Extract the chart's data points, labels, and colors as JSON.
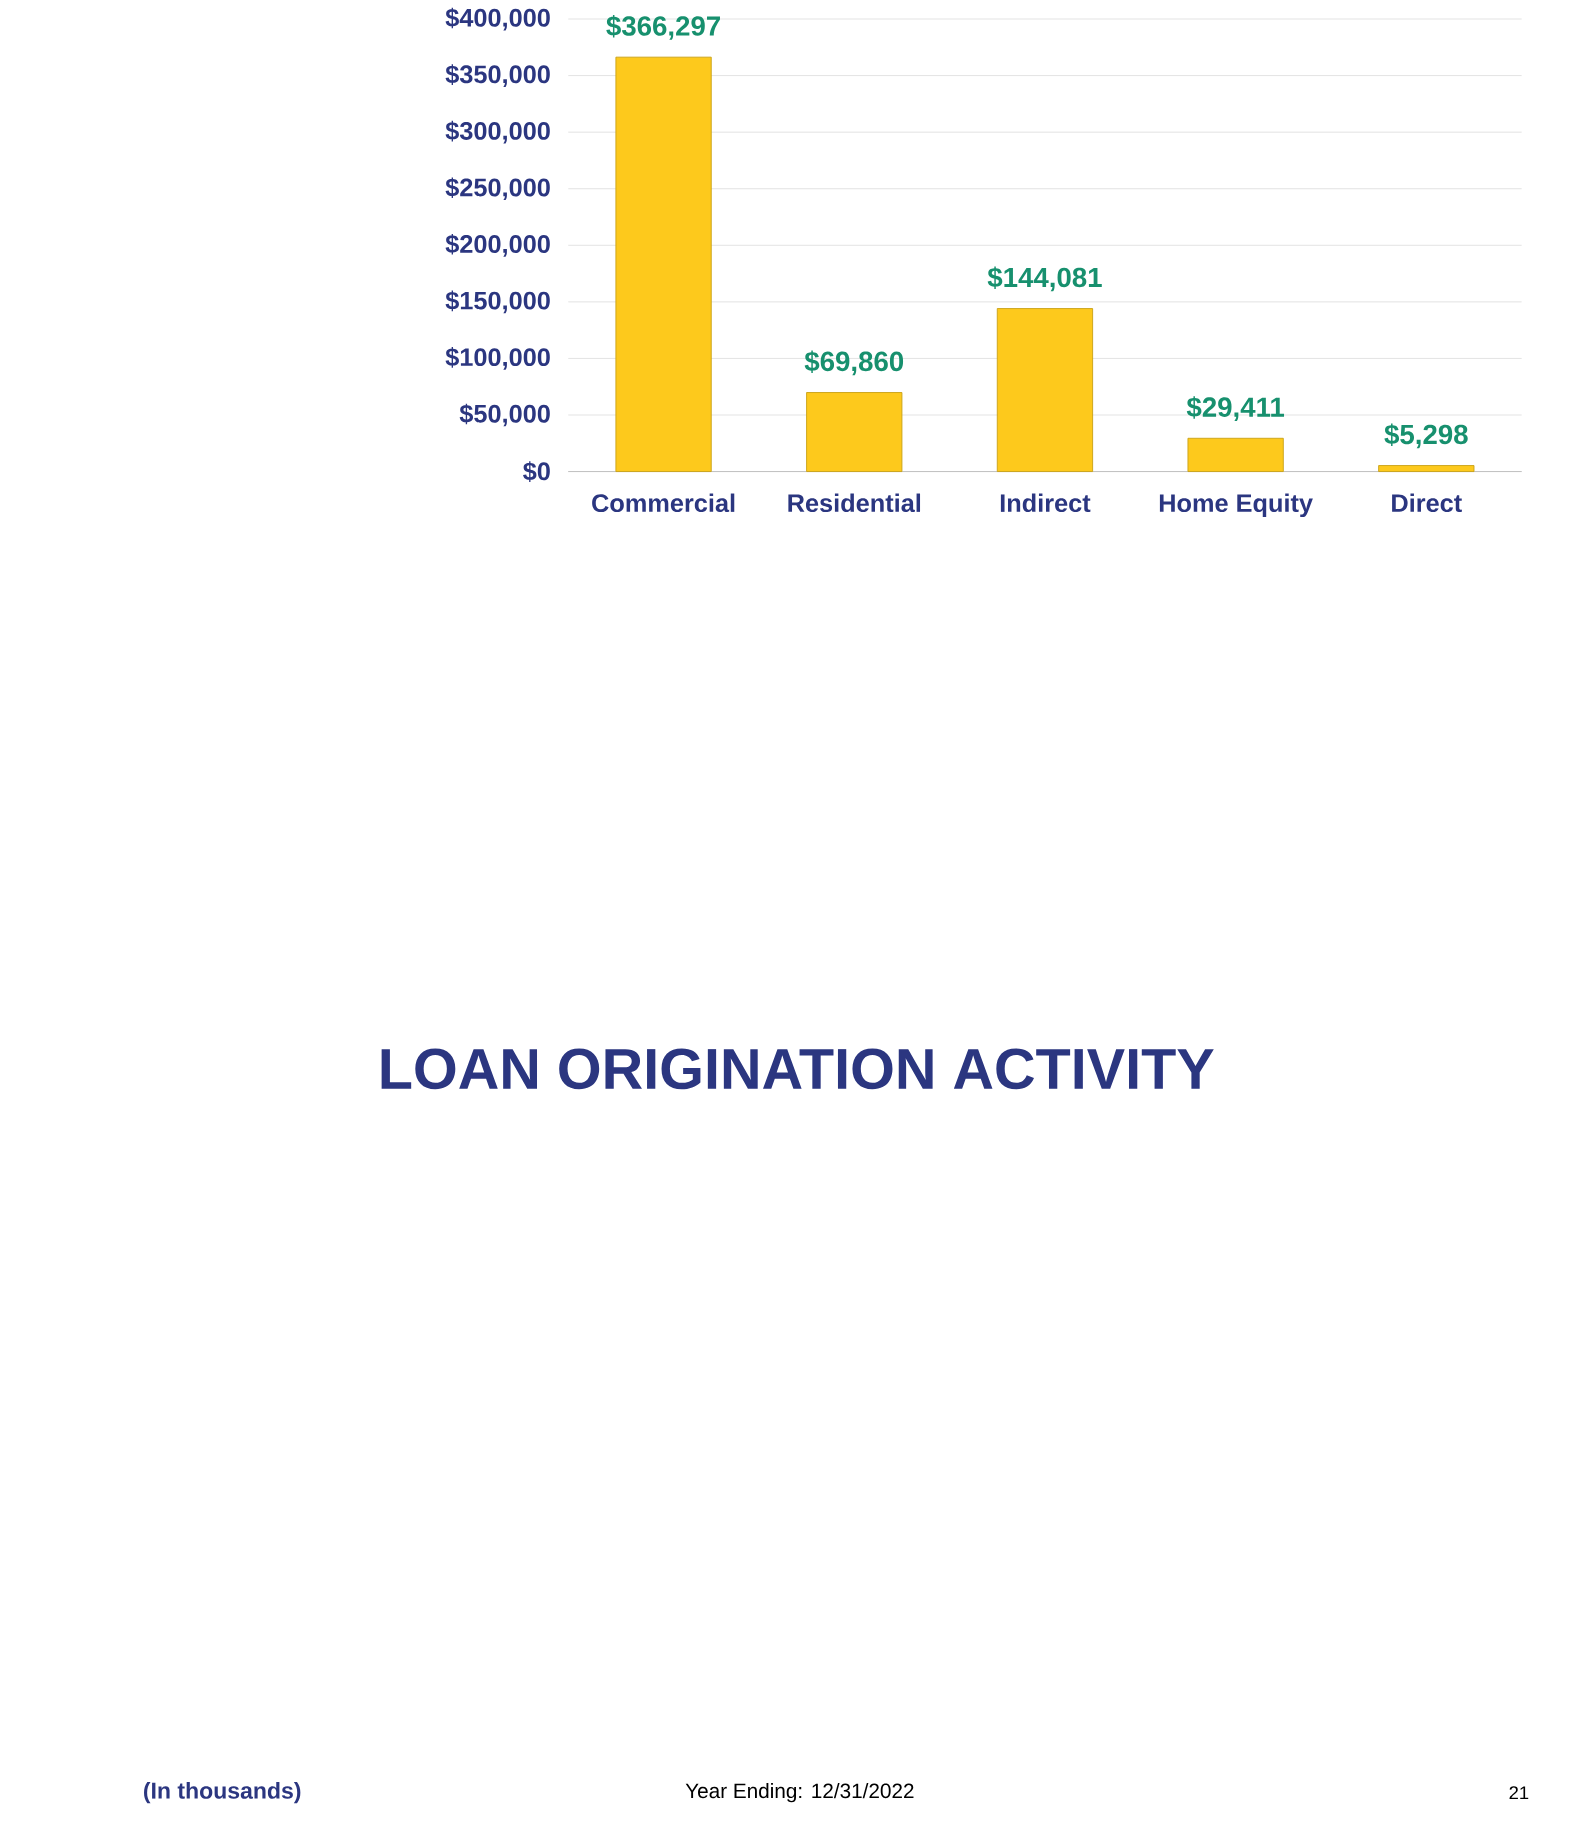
{
  "chart_data": {
    "type": "bar",
    "title": "LOAN ORIGINATION ACTIVITY",
    "categories": [
      "Commercial",
      "Residential",
      "Indirect",
      "Home Equity",
      "Direct"
    ],
    "values": [
      366297,
      69860,
      144081,
      29411,
      5298
    ],
    "value_labels": [
      "$366,297",
      "$69,860",
      "$144,081",
      "$29,411",
      "$5,298"
    ],
    "color": "#fdc91c",
    "ylim": [
      0,
      400000
    ],
    "yticks": [
      {
        "value": 0,
        "label": "$0"
      },
      {
        "value": 50000,
        "label": "$50,000"
      },
      {
        "value": 100000,
        "label": "$100,000"
      },
      {
        "value": 150000,
        "label": "$150,000"
      },
      {
        "value": 200000,
        "label": "$200,000"
      },
      {
        "value": 250000,
        "label": "$250,000"
      },
      {
        "value": 300000,
        "label": "$300,000"
      },
      {
        "value": 350000,
        "label": "$350,000"
      },
      {
        "value": 400000,
        "label": "$400,000"
      }
    ],
    "grid": "y",
    "annotations": [
      "(In thousands)",
      "Year Ending: 12/31/2022",
      "21"
    ]
  }
}
